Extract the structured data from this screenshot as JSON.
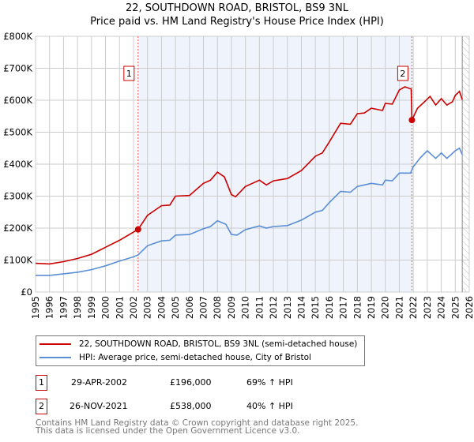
{
  "chart_data": {
    "type": "line",
    "title": "22, SOUTHDOWN ROAD, BRISTOL, BS9 3NL",
    "subtitle": "Price paid vs. HM Land Registry's House Price Index (HPI)",
    "xlim": [
      1995,
      2026
    ],
    "ylim": [
      0,
      800000
    ],
    "y_ticks": [
      {
        "v": 0,
        "label": "£0"
      },
      {
        "v": 100000,
        "label": "£100K"
      },
      {
        "v": 200000,
        "label": "£200K"
      },
      {
        "v": 300000,
        "label": "£300K"
      },
      {
        "v": 400000,
        "label": "£400K"
      },
      {
        "v": 500000,
        "label": "£500K"
      },
      {
        "v": 600000,
        "label": "£600K"
      },
      {
        "v": 700000,
        "label": "£700K"
      },
      {
        "v": 800000,
        "label": "£800K"
      }
    ],
    "x_ticks": [
      "1995",
      "1996",
      "1997",
      "1998",
      "1999",
      "2000",
      "2001",
      "2002",
      "2003",
      "2004",
      "2005",
      "2006",
      "2007",
      "2008",
      "2009",
      "2010",
      "2011",
      "2012",
      "2013",
      "2014",
      "2015",
      "2016",
      "2017",
      "2018",
      "2019",
      "2020",
      "2021",
      "2022",
      "2023",
      "2024",
      "2025",
      "2026"
    ],
    "grid": true,
    "shaded_range": [
      2002.33,
      2021.9
    ],
    "hatched_from": 2025.5,
    "series": [
      {
        "name": "22, SOUTHDOWN ROAD, BRISTOL, BS9 3NL (semi-detached house)",
        "color": "#cc0000",
        "x": [
          1995,
          1996,
          1997,
          1998,
          1999,
          2000,
          2001,
          2002.33,
          2003,
          2004,
          2004.6,
          2005,
          2006,
          2007,
          2007.5,
          2008,
          2008.5,
          2009,
          2009.3,
          2010,
          2011,
          2011.5,
          2012,
          2013,
          2014,
          2015,
          2015.5,
          2016,
          2016.8,
          2017.5,
          2018,
          2018.5,
          2019,
          2019.8,
          2020,
          2020.5,
          2021,
          2021.4,
          2021.85,
          2021.9,
          2022.3,
          2022.8,
          2023.2,
          2023.6,
          2024,
          2024.4,
          2024.8,
          2025,
          2025.3,
          2025.5
        ],
        "y": [
          90000,
          88000,
          95000,
          105000,
          118000,
          140000,
          162000,
          196000,
          240000,
          270000,
          272000,
          300000,
          302000,
          340000,
          350000,
          375000,
          360000,
          305000,
          298000,
          330000,
          350000,
          335000,
          348000,
          355000,
          380000,
          425000,
          435000,
          470000,
          528000,
          525000,
          558000,
          560000,
          575000,
          568000,
          590000,
          588000,
          632000,
          642000,
          635000,
          538000,
          575000,
          595000,
          612000,
          585000,
          605000,
          585000,
          595000,
          615000,
          628000,
          602000
        ]
      },
      {
        "name": "HPI: Average price, semi-detached house, City of Bristol",
        "color": "#5b8fd4",
        "x": [
          1995,
          1996,
          1997,
          1998,
          1999,
          2000,
          2001,
          2002,
          2002.33,
          2003,
          2004,
          2004.6,
          2005,
          2006,
          2007,
          2007.5,
          2008,
          2008.6,
          2009,
          2009.4,
          2010,
          2011,
          2011.5,
          2012,
          2013,
          2014,
          2015,
          2015.5,
          2016,
          2016.8,
          2017.5,
          2018,
          2019,
          2019.8,
          2020,
          2020.5,
          2021,
          2021.8,
          2022,
          2022.5,
          2023,
          2023.6,
          2024,
          2024.4,
          2025,
          2025.3,
          2025.5
        ],
        "y": [
          52000,
          52000,
          57000,
          62000,
          70000,
          82000,
          97000,
          110000,
          116000,
          145000,
          160000,
          162000,
          178000,
          180000,
          198000,
          205000,
          223000,
          212000,
          180000,
          178000,
          195000,
          207000,
          200000,
          205000,
          208000,
          225000,
          250000,
          255000,
          280000,
          315000,
          312000,
          330000,
          340000,
          335000,
          350000,
          348000,
          372000,
          372000,
          392000,
          420000,
          442000,
          418000,
          435000,
          418000,
          442000,
          450000,
          430000
        ]
      }
    ],
    "annotations": [
      {
        "label": "1",
        "x": 2002.33,
        "y": 196000,
        "date": "29-APR-2002",
        "price": "£196,000",
        "hpi": "69% ↑ HPI"
      },
      {
        "label": "2",
        "x": 2021.9,
        "y": 538000,
        "date": "26-NOV-2021",
        "price": "£538,000",
        "hpi": "40% ↑ HPI"
      }
    ]
  },
  "footer": {
    "line1": "Contains HM Land Registry data © Crown copyright and database right 2025.",
    "line2": "This data is licensed under the Open Government Licence v3.0."
  }
}
